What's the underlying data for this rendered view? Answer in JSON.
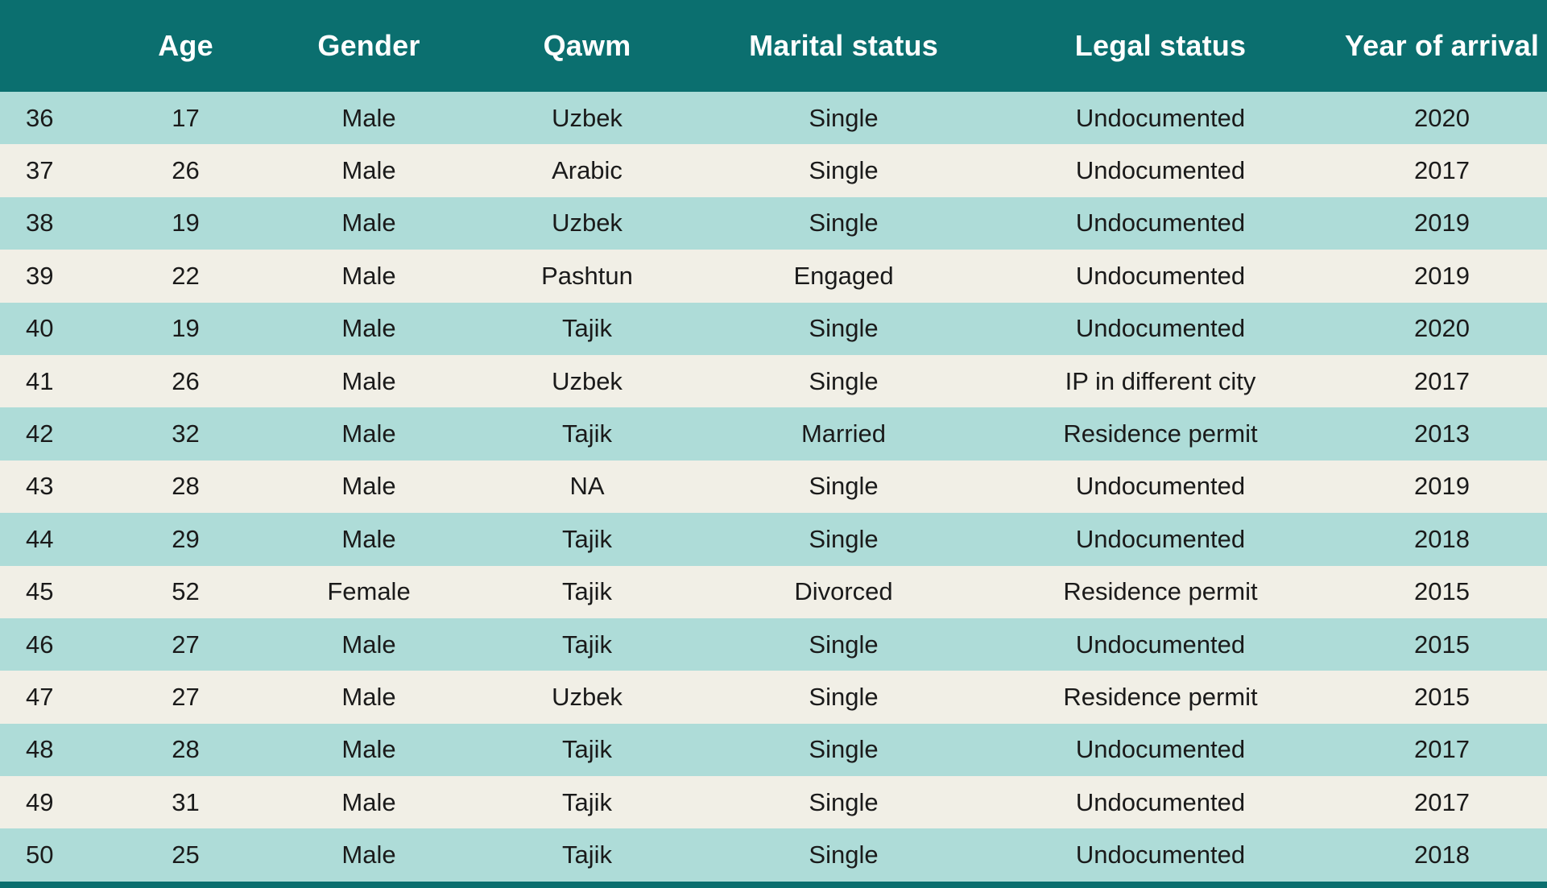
{
  "chart_data": {
    "type": "table",
    "headers": [
      "",
      "Age",
      "Gender",
      "Qawm",
      "Marital status",
      "Legal status",
      "Year of arrival"
    ],
    "rows": [
      [
        "36",
        "17",
        "Male",
        "Uzbek",
        "Single",
        "Undocumented",
        "2020"
      ],
      [
        "37",
        "26",
        "Male",
        "Arabic",
        "Single",
        "Undocumented",
        "2017"
      ],
      [
        "38",
        "19",
        "Male",
        "Uzbek",
        "Single",
        "Undocumented",
        "2019"
      ],
      [
        "39",
        "22",
        "Male",
        "Pashtun",
        "Engaged",
        "Undocumented",
        "2019"
      ],
      [
        "40",
        "19",
        "Male",
        "Tajik",
        "Single",
        "Undocumented",
        "2020"
      ],
      [
        "41",
        "26",
        "Male",
        "Uzbek",
        "Single",
        "IP in different city",
        "2017"
      ],
      [
        "42",
        "32",
        "Male",
        "Tajik",
        "Married",
        "Residence permit",
        "2013"
      ],
      [
        "43",
        "28",
        "Male",
        "NA",
        "Single",
        "Undocumented",
        "2019"
      ],
      [
        "44",
        "29",
        "Male",
        "Tajik",
        "Single",
        "Undocumented",
        "2018"
      ],
      [
        "45",
        "52",
        "Female",
        "Tajik",
        "Divorced",
        "Residence permit",
        "2015"
      ],
      [
        "46",
        "27",
        "Male",
        "Tajik",
        "Single",
        "Undocumented",
        "2015"
      ],
      [
        "47",
        "27",
        "Male",
        "Uzbek",
        "Single",
        "Residence permit",
        "2015"
      ],
      [
        "48",
        "28",
        "Male",
        "Tajik",
        "Single",
        "Undocumented",
        "2017"
      ],
      [
        "49",
        "31",
        "Male",
        "Tajik",
        "Single",
        "Undocumented",
        "2017"
      ],
      [
        "50",
        "25",
        "Male",
        "Tajik",
        "Single",
        "Undocumented",
        "2018"
      ]
    ]
  },
  "colors": {
    "header_bg": "#0b6f6f",
    "header_text": "#ffffff",
    "row_teal": "#aedcd8",
    "row_cream": "#f1efe6",
    "body_text": "#1a1a1a"
  }
}
